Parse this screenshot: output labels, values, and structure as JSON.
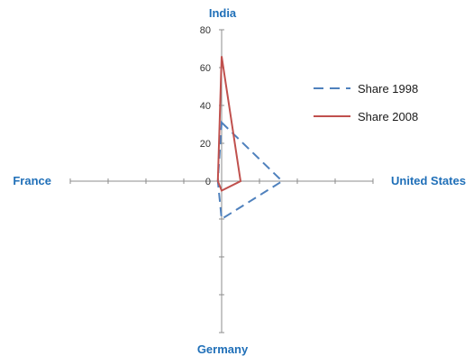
{
  "chart_data": {
    "type": "radar",
    "axes": [
      "India",
      "United States",
      "Germany",
      "France"
    ],
    "ticks": [
      "80",
      "60",
      "40",
      "20",
      "0"
    ],
    "tick_values": [
      80,
      60,
      40,
      20,
      0
    ],
    "rlim": [
      0,
      80
    ],
    "series": [
      {
        "name": "Share 1998",
        "values": [
          31,
          32,
          20,
          2
        ],
        "color": "#4f81bd",
        "dash": "dashed"
      },
      {
        "name": "Share 2008",
        "values": [
          66,
          10,
          5,
          2
        ],
        "color": "#c0504d",
        "dash": "solid"
      }
    ],
    "legend": "right",
    "grid": false
  }
}
